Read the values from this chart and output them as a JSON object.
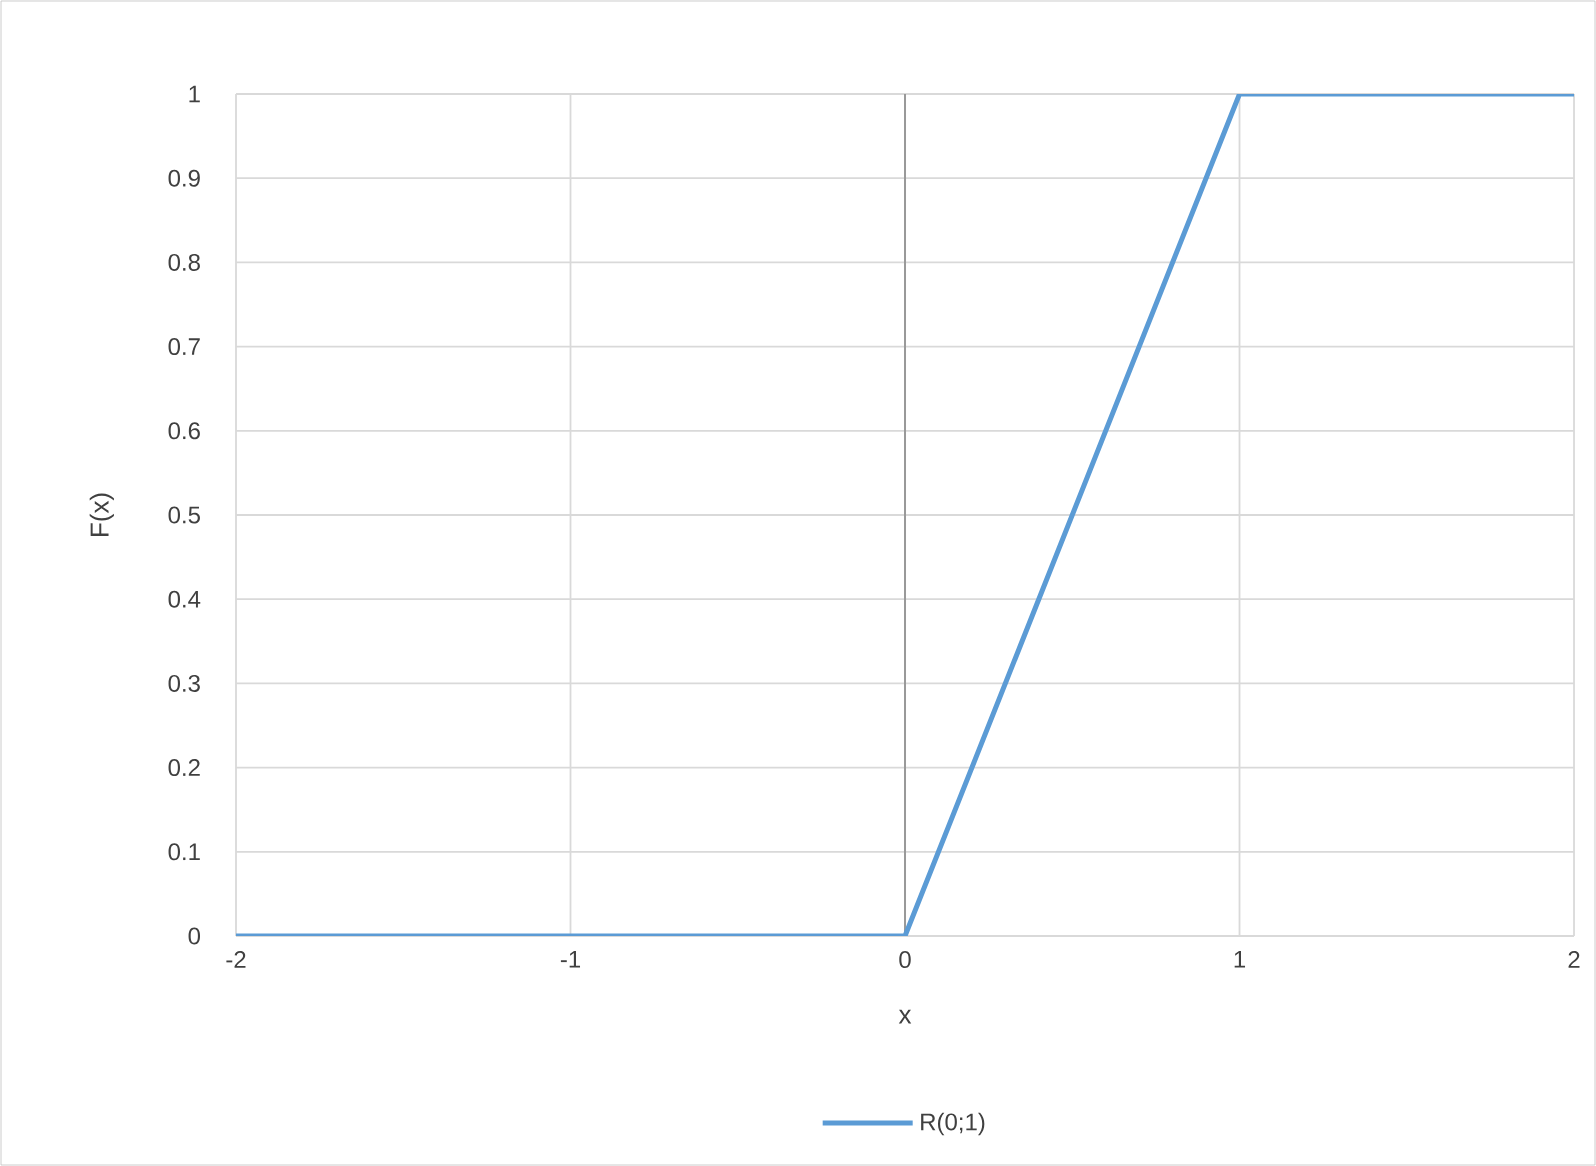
{
  "chart_data": {
    "type": "line",
    "xlabel": "x",
    "ylabel": "F(x)",
    "xlim": [
      -2,
      2
    ],
    "ylim": [
      0,
      1
    ],
    "xticks": [
      -2,
      -1,
      0,
      1,
      2
    ],
    "yticks": [
      0,
      0.1,
      0.2,
      0.3,
      0.4,
      0.5,
      0.6,
      0.7,
      0.8,
      0.9,
      1
    ],
    "grid": true,
    "legend": "bottom",
    "line_style": "solid",
    "marker": "none",
    "series": [
      {
        "name": "R(0;1)",
        "color": "#5b9bd5",
        "x": [
          -2,
          0,
          1,
          2
        ],
        "values": [
          0,
          0,
          1,
          1
        ]
      }
    ]
  }
}
